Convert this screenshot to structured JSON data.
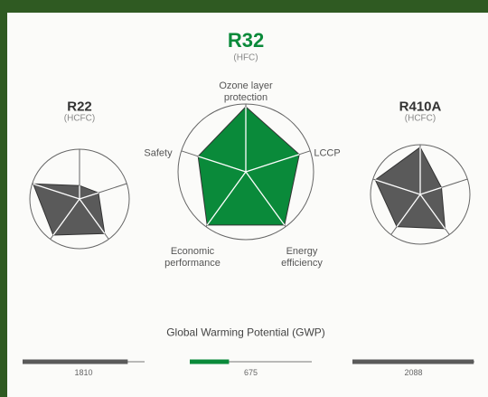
{
  "chart_data": [
    {
      "type": "radar",
      "title": "R22",
      "subtitle": "(HCFC)",
      "categories": [
        null,
        null,
        null,
        null,
        null
      ],
      "values": [
        0.27,
        0.4,
        0.86,
        0.9,
        0.98
      ],
      "color": "#5a5a5a",
      "rlim": [
        0,
        1
      ]
    },
    {
      "type": "radar",
      "title": "R32",
      "subtitle": "(HFC)",
      "categories": [
        "Ozone layer protection",
        "LCCP",
        "Energy efficiency",
        "Economic performance",
        "Safety"
      ],
      "values": [
        0.96,
        0.83,
        0.97,
        0.97,
        0.74
      ],
      "color": "#0a8a3a",
      "rlim": [
        0,
        1
      ]
    },
    {
      "type": "radar",
      "title": "R410A",
      "subtitle": "(HCFC)",
      "categories": [
        null,
        null,
        null,
        null,
        null
      ],
      "values": [
        0.95,
        0.45,
        0.85,
        0.8,
        0.95
      ],
      "color": "#5a5a5a",
      "rlim": [
        0,
        1
      ]
    },
    {
      "type": "bar",
      "title": "Global Warming Potential (GWP)",
      "values": [
        1810,
        675,
        2088
      ],
      "colors": [
        "#5a5a5a",
        "#0a8a3a",
        "#5a5a5a"
      ],
      "xlim": [
        0,
        2100
      ]
    }
  ]
}
